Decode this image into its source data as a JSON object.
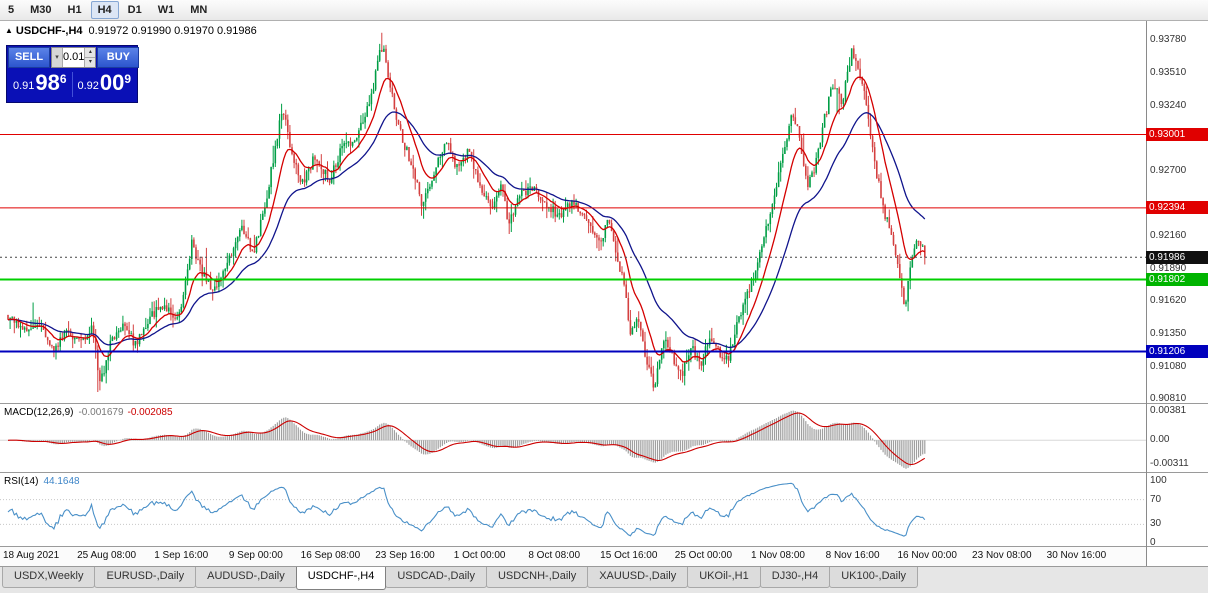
{
  "toolbar": {
    "timeframes": [
      "5",
      "M30",
      "H1",
      "H4",
      "D1",
      "W1",
      "MN"
    ],
    "active": "H4"
  },
  "chart_header": {
    "symbol_title": "USDCHF-,H4",
    "ohlc": "0.91972 0.91990 0.91970 0.91986"
  },
  "trade_panel": {
    "sell_label": "SELL",
    "buy_label": "BUY",
    "volume": "0.01",
    "sell_price": {
      "prefix": "0.91",
      "big": "98",
      "sup": "6"
    },
    "buy_price": {
      "prefix": "0.92",
      "big": "00",
      "sup": "9"
    }
  },
  "price_scale": {
    "ticks": [
      "0.93780",
      "0.93510",
      "0.93240",
      "0.92700",
      "0.92160",
      "0.91890",
      "0.91620",
      "0.91350",
      "0.91080",
      "0.90810"
    ],
    "badges": [
      {
        "price": 0.93001,
        "label": "0.93001",
        "color": "#e00000"
      },
      {
        "price": 0.92394,
        "label": "0.92394",
        "color": "#e00000"
      },
      {
        "price": 0.91986,
        "label": "0.91986",
        "color": "#101010"
      },
      {
        "price": 0.91802,
        "label": "0.91802",
        "color": "#00b400"
      },
      {
        "price": 0.91206,
        "label": "0.91206",
        "color": "#0000bd"
      }
    ]
  },
  "indicators": {
    "macd": {
      "label": "MACD(12,26,9)",
      "value_main": "-0.001679",
      "value_signal": "-0.002085"
    },
    "rsi": {
      "label": "RSI(14)",
      "value": "44.1648",
      "scale_ticks": [
        "100",
        "70",
        "30",
        "0"
      ]
    }
  },
  "time_axis": {
    "labels": [
      "18 Aug 2021",
      "25 Aug 08:00",
      "1 Sep 16:00",
      "9 Sep 00:00",
      "16 Sep 08:00",
      "23 Sep 16:00",
      "1 Oct 00:00",
      "8 Oct 08:00",
      "15 Oct 16:00",
      "25 Oct 00:00",
      "1 Nov 08:00",
      "8 Nov 16:00",
      "16 Nov 00:00",
      "23 Nov 08:00",
      "30 Nov 16:00"
    ]
  },
  "tabs": {
    "items": [
      "USDX,Weekly",
      "EURUSD-,Daily",
      "AUDUSD-,Daily",
      "USDCHF-,H4",
      "USDCAD-,Daily",
      "USDCNH-,Daily",
      "XAUUSD-,Daily",
      "UKOil-,H1",
      "DJ30-,H4",
      "UK100-,Daily"
    ],
    "active_index": 3
  },
  "colors": {
    "bull": "#009e45",
    "bear": "#d44040",
    "ma_fast": "#d40000",
    "ma_slow": "#10148c",
    "macd_hist": "#a0a0a0",
    "macd_signal": "#cc0000",
    "rsi_line": "#4a90c8"
  },
  "chart_data": {
    "type": "candlestick",
    "symbol": "USDCHF",
    "timeframe": "H4",
    "current": {
      "open": 0.91972,
      "high": 0.9199,
      "low": 0.9197,
      "close": 0.91986,
      "bid": 0.91986,
      "ask": 0.92009
    },
    "y_axis": {
      "min": 0.9078,
      "max": 0.9394
    },
    "hlines": [
      {
        "price": 0.93001,
        "color": "#e00000",
        "width": 1
      },
      {
        "price": 0.92394,
        "color": "#e00000",
        "width": 1
      },
      {
        "price": 0.91802,
        "color": "#00cf00",
        "width": 2
      },
      {
        "price": 0.91206,
        "color": "#0000bd",
        "width": 2
      }
    ],
    "candle_count": 440,
    "x_end_fraction": 0.807,
    "price_path": [
      [
        0.0,
        0.915
      ],
      [
        0.02,
        0.9136
      ],
      [
        0.035,
        0.9144
      ],
      [
        0.05,
        0.9122
      ],
      [
        0.065,
        0.9138
      ],
      [
        0.08,
        0.9128
      ],
      [
        0.092,
        0.9142
      ],
      [
        0.1,
        0.9096
      ],
      [
        0.106,
        0.9108
      ],
      [
        0.112,
        0.913
      ],
      [
        0.125,
        0.9141
      ],
      [
        0.14,
        0.9126
      ],
      [
        0.155,
        0.915
      ],
      [
        0.17,
        0.916
      ],
      [
        0.185,
        0.9147
      ],
      [
        0.195,
        0.918
      ],
      [
        0.2,
        0.9212
      ],
      [
        0.21,
        0.9188
      ],
      [
        0.225,
        0.917
      ],
      [
        0.24,
        0.9196
      ],
      [
        0.255,
        0.9226
      ],
      [
        0.268,
        0.9202
      ],
      [
        0.283,
        0.9252
      ],
      [
        0.294,
        0.93
      ],
      [
        0.3,
        0.9322
      ],
      [
        0.308,
        0.9288
      ],
      [
        0.32,
        0.9258
      ],
      [
        0.335,
        0.9282
      ],
      [
        0.35,
        0.9262
      ],
      [
        0.365,
        0.929
      ],
      [
        0.38,
        0.9298
      ],
      [
        0.395,
        0.9326
      ],
      [
        0.405,
        0.9368
      ],
      [
        0.41,
        0.9375
      ],
      [
        0.417,
        0.9338
      ],
      [
        0.425,
        0.9308
      ],
      [
        0.44,
        0.9276
      ],
      [
        0.452,
        0.9242
      ],
      [
        0.465,
        0.927
      ],
      [
        0.478,
        0.9296
      ],
      [
        0.49,
        0.9272
      ],
      [
        0.502,
        0.9286
      ],
      [
        0.515,
        0.9258
      ],
      [
        0.528,
        0.9238
      ],
      [
        0.538,
        0.926
      ],
      [
        0.546,
        0.9224
      ],
      [
        0.558,
        0.925
      ],
      [
        0.572,
        0.9256
      ],
      [
        0.585,
        0.9246
      ],
      [
        0.6,
        0.9232
      ],
      [
        0.615,
        0.9246
      ],
      [
        0.63,
        0.9228
      ],
      [
        0.645,
        0.921
      ],
      [
        0.655,
        0.923
      ],
      [
        0.665,
        0.9198
      ],
      [
        0.672,
        0.9176
      ],
      [
        0.679,
        0.9132
      ],
      [
        0.686,
        0.915
      ],
      [
        0.695,
        0.9118
      ],
      [
        0.705,
        0.909
      ],
      [
        0.715,
        0.9132
      ],
      [
        0.725,
        0.9116
      ],
      [
        0.735,
        0.9102
      ],
      [
        0.745,
        0.9126
      ],
      [
        0.755,
        0.9108
      ],
      [
        0.765,
        0.9134
      ],
      [
        0.775,
        0.912
      ],
      [
        0.785,
        0.9114
      ],
      [
        0.795,
        0.9142
      ],
      [
        0.805,
        0.9164
      ],
      [
        0.815,
        0.9188
      ],
      [
        0.825,
        0.9216
      ],
      [
        0.835,
        0.9246
      ],
      [
        0.845,
        0.9282
      ],
      [
        0.855,
        0.9318
      ],
      [
        0.862,
        0.9302
      ],
      [
        0.872,
        0.9256
      ],
      [
        0.88,
        0.9274
      ],
      [
        0.89,
        0.9312
      ],
      [
        0.9,
        0.9342
      ],
      [
        0.91,
        0.9326
      ],
      [
        0.92,
        0.9368
      ],
      [
        0.928,
        0.9352
      ],
      [
        0.936,
        0.9328
      ],
      [
        0.945,
        0.9278
      ],
      [
        0.955,
        0.9238
      ],
      [
        0.965,
        0.9214
      ],
      [
        0.972,
        0.9188
      ],
      [
        0.978,
        0.9154
      ],
      [
        0.985,
        0.9198
      ],
      [
        0.992,
        0.9218
      ],
      [
        1.0,
        0.91986
      ]
    ],
    "macd_scale": {
      "min": -0.0042,
      "max": 0.0048,
      "ticks": [
        {
          "v": 0.00381,
          "label": "0.00381"
        },
        {
          "v": 0,
          "label": "0.00"
        },
        {
          "v": -0.00311,
          "label": "-0.00311"
        }
      ]
    },
    "rsi_levels": [
      70,
      30
    ]
  }
}
